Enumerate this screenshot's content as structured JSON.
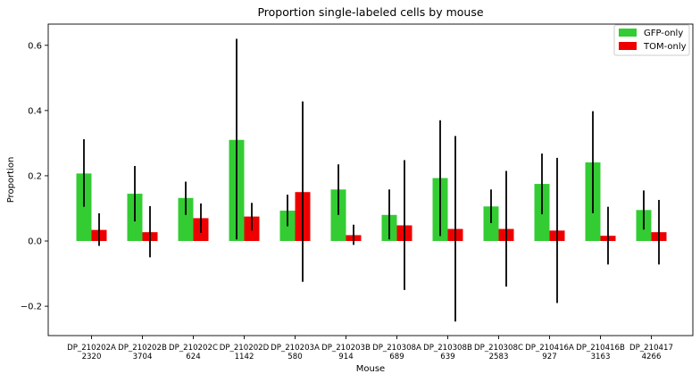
{
  "chart_data": {
    "type": "bar",
    "title": "Proportion single-labeled cells by mouse",
    "xlabel": "Mouse",
    "ylabel": "Proportion",
    "ylim": [
      -0.29,
      0.665
    ],
    "yticks": [
      -0.2,
      0.0,
      0.2,
      0.4,
      0.6
    ],
    "ytick_labels": [
      "−0.2",
      "0.0",
      "0.2",
      "0.4",
      "0.6"
    ],
    "grid": false,
    "legend_position": "top-right",
    "categories": [
      {
        "line1": "DP_210202A",
        "line2": "2320"
      },
      {
        "line1": "DP_210202B",
        "line2": "3704"
      },
      {
        "line1": "DP_210202C",
        "line2": "624"
      },
      {
        "line1": "DP_210202D",
        "line2": "1142"
      },
      {
        "line1": "DP_210203A",
        "line2": "580"
      },
      {
        "line1": "DP_210203B",
        "line2": "914"
      },
      {
        "line1": "DP_210308A",
        "line2": "689"
      },
      {
        "line1": "DP_210308B",
        "line2": "639"
      },
      {
        "line1": "DP_210308C",
        "line2": "2583"
      },
      {
        "line1": "DP_210416A",
        "line2": "927"
      },
      {
        "line1": "DP_210416B",
        "line2": "3163"
      },
      {
        "line1": "DP_210417",
        "line2": "4266"
      }
    ],
    "series": [
      {
        "name": "GFP-only",
        "color": "#33cc33",
        "values": [
          0.207,
          0.145,
          0.132,
          0.31,
          0.093,
          0.158,
          0.08,
          0.193,
          0.106,
          0.175,
          0.241,
          0.095
        ],
        "err_low": [
          0.105,
          0.06,
          0.08,
          0.005,
          0.045,
          0.08,
          0.005,
          0.015,
          0.055,
          0.082,
          0.085,
          0.035
        ],
        "err_high": [
          0.312,
          0.23,
          0.182,
          0.62,
          0.142,
          0.235,
          0.158,
          0.37,
          0.158,
          0.268,
          0.398,
          0.155
        ]
      },
      {
        "name": "TOM-only",
        "color": "#ee0000",
        "values": [
          0.034,
          0.027,
          0.07,
          0.075,
          0.15,
          0.018,
          0.048,
          0.037,
          0.037,
          0.032,
          0.016,
          0.027
        ],
        "err_low": [
          -0.015,
          -0.05,
          0.025,
          0.032,
          -0.125,
          -0.012,
          -0.15,
          -0.247,
          -0.14,
          -0.19,
          -0.072,
          -0.072
        ],
        "err_high": [
          0.085,
          0.107,
          0.115,
          0.117,
          0.428,
          0.05,
          0.248,
          0.322,
          0.215,
          0.255,
          0.105,
          0.126
        ]
      }
    ]
  }
}
